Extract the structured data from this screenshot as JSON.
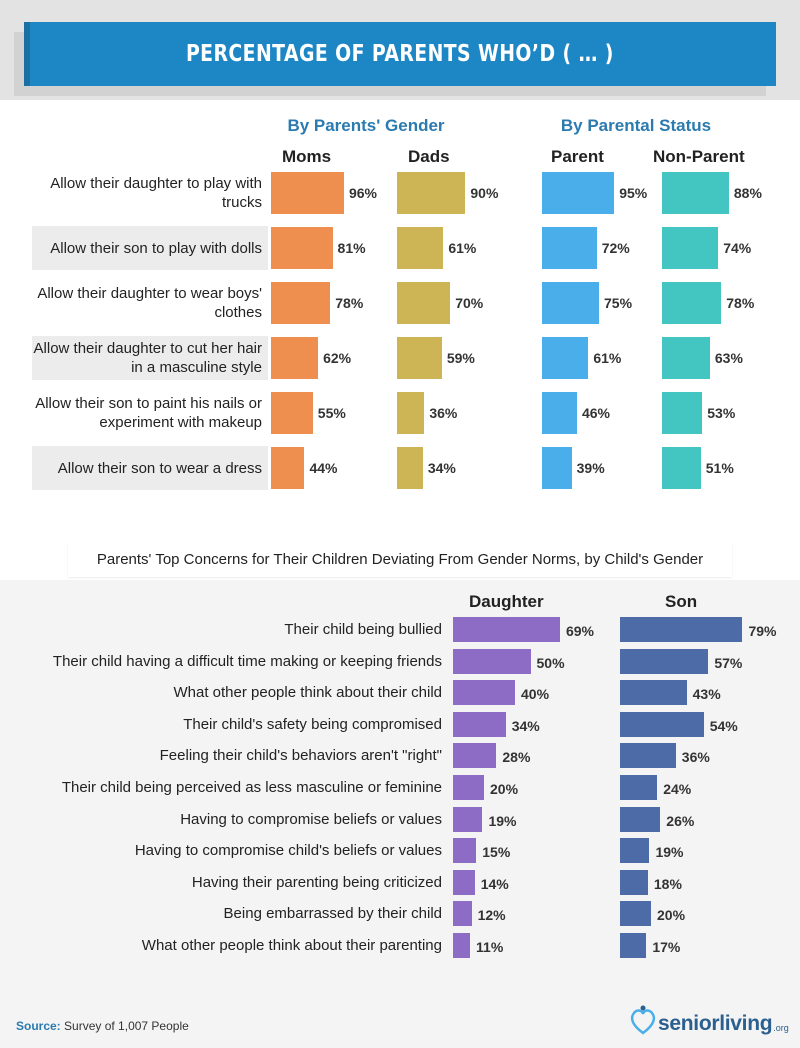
{
  "title": "Percentage of Parents Who’d ( … )",
  "colors": {
    "banner": "#1d86c4",
    "moms": "#ef8f4f",
    "dads": "#cdb454",
    "parent": "#4aaeea",
    "non_parent": "#43c5c2",
    "daughter": "#8d6cc6",
    "son": "#4d6ba6",
    "group_heading": "#2b7bb0"
  },
  "chart_data": [
    {
      "type": "bar",
      "orientation": "horizontal",
      "groups": [
        "By Parents' Gender",
        "By Parental Status"
      ],
      "categories": [
        "Allow their daughter to play with trucks",
        "Allow their son to play with dolls",
        "Allow their daughter to wear boys' clothes",
        "Allow their daughter to cut her hair in a masculine style",
        "Allow their son to paint his nails or experiment with makeup",
        "Allow their son to wear a dress"
      ],
      "series": [
        {
          "name": "Moms",
          "values": [
            96,
            81,
            78,
            62,
            55,
            44
          ]
        },
        {
          "name": "Dads",
          "values": [
            90,
            61,
            70,
            59,
            36,
            34
          ]
        },
        {
          "name": "Parent",
          "values": [
            95,
            72,
            75,
            61,
            46,
            39
          ]
        },
        {
          "name": "Non-Parent",
          "values": [
            88,
            74,
            78,
            63,
            53,
            51
          ]
        }
      ],
      "unit": "%"
    },
    {
      "type": "bar",
      "orientation": "horizontal",
      "title": "Parents' Top Concerns for Their Children Deviating From Gender Norms, by Child's Gender",
      "categories": [
        "Their child being bullied",
        "Their child having a difficult time making or keeping friends",
        "What other people think about their child",
        "Their child's safety being compromised",
        "Feeling their child's behaviors aren't \"right\"",
        "Their child being perceived as less masculine or feminine",
        "Having to compromise beliefs or values",
        "Having to compromise child's beliefs or values",
        "Having their parenting being criticized",
        "Being embarrassed by their child",
        "What other people think about their parenting"
      ],
      "series": [
        {
          "name": "Daughter",
          "values": [
            69,
            50,
            40,
            34,
            28,
            20,
            19,
            15,
            14,
            12,
            11
          ]
        },
        {
          "name": "Son",
          "values": [
            79,
            57,
            43,
            54,
            36,
            24,
            26,
            19,
            18,
            20,
            17
          ]
        }
      ],
      "unit": "%"
    }
  ],
  "footer": {
    "source_label": "Source:",
    "source_text": "Survey of 1,007 People",
    "logo_text": "seniorliving",
    "logo_suffix": ".org"
  }
}
